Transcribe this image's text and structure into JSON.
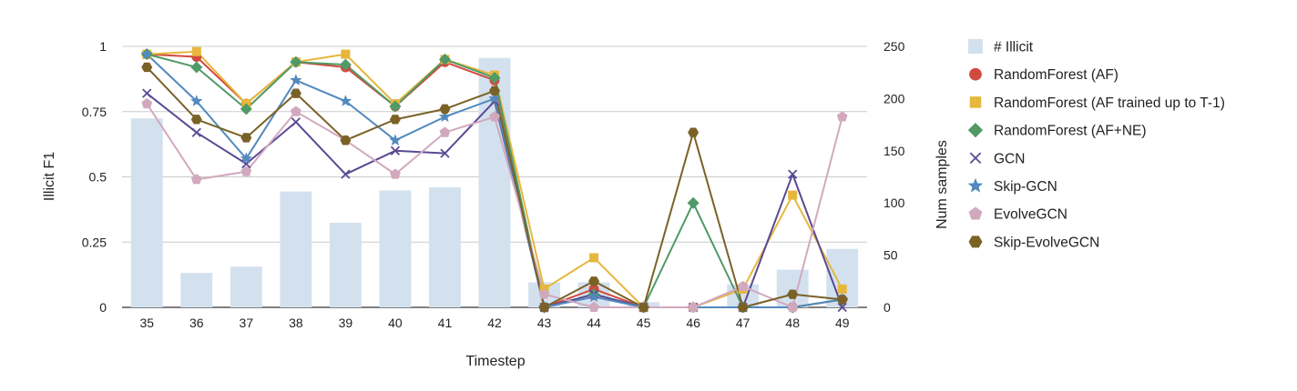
{
  "chart_data": {
    "type": "bar+line",
    "x": [
      "35",
      "36",
      "37",
      "38",
      "39",
      "40",
      "41",
      "42",
      "43",
      "44",
      "45",
      "46",
      "47",
      "48",
      "49"
    ],
    "xlabel": "Timestep",
    "ylabel_left": "Illicit F1",
    "ylabel_right": "Num samples",
    "ylim_left": [
      0,
      1
    ],
    "ylim_right": [
      0,
      250
    ],
    "yticks_left": [
      "0",
      "0.25",
      "0.5",
      "0.75",
      "1"
    ],
    "yticks_right": [
      "0",
      "50",
      "100",
      "150",
      "200",
      "250"
    ],
    "grid": true,
    "legend_position": "right",
    "bars": {
      "name": "# Illicit",
      "color": "#d3e1ef",
      "values": [
        181,
        33,
        39,
        111,
        81,
        112,
        115,
        239,
        24,
        24,
        5,
        0,
        22,
        36,
        56
      ]
    },
    "series": [
      {
        "name": "RandomForest (AF)",
        "color": "#d24a3f",
        "marker": "circle",
        "values": [
          0.97,
          0.96,
          0.78,
          0.94,
          0.92,
          0.77,
          0.94,
          0.87,
          0.0,
          0.07,
          0.0,
          0.0,
          0.0,
          0.0,
          0.03
        ]
      },
      {
        "name": "RandomForest  (AF trained up to T-1)",
        "color": "#e7b73c",
        "marker": "square",
        "values": [
          0.97,
          0.98,
          0.78,
          0.94,
          0.97,
          0.78,
          0.95,
          0.89,
          0.07,
          0.19,
          0.0,
          0.0,
          0.07,
          0.43,
          0.07
        ]
      },
      {
        "name": "RandomForest (AF+NE)",
        "color": "#4f9a66",
        "marker": "diamond",
        "values": [
          0.97,
          0.92,
          0.76,
          0.94,
          0.93,
          0.77,
          0.95,
          0.88,
          0.0,
          0.05,
          0.0,
          0.4,
          0.0,
          0.0,
          0.03
        ]
      },
      {
        "name": "GCN",
        "color": "#5a4a94",
        "marker": "x",
        "values": [
          0.82,
          0.67,
          0.55,
          0.71,
          0.51,
          0.6,
          0.59,
          0.79,
          0.0,
          0.05,
          0.0,
          0.0,
          0.0,
          0.51,
          0.0
        ]
      },
      {
        "name": "Skip-GCN",
        "color": "#5389bd",
        "marker": "star",
        "values": [
          0.97,
          0.79,
          0.57,
          0.87,
          0.79,
          0.64,
          0.73,
          0.8,
          0.0,
          0.04,
          0.0,
          0.0,
          0.0,
          0.0,
          0.03
        ]
      },
      {
        "name": "EvolveGCN",
        "color": "#d1a9be",
        "marker": "pentagon",
        "values": [
          0.78,
          0.49,
          0.52,
          0.75,
          0.64,
          0.51,
          0.67,
          0.73,
          0.05,
          0.0,
          0.0,
          0.0,
          0.08,
          0.0,
          0.73
        ]
      },
      {
        "name": "Skip-EvolveGCN",
        "color": "#7a6227",
        "marker": "hexagon",
        "values": [
          0.92,
          0.72,
          0.65,
          0.82,
          0.64,
          0.72,
          0.76,
          0.83,
          0.0,
          0.1,
          0.0,
          0.67,
          0.0,
          0.05,
          0.03
        ]
      }
    ]
  }
}
